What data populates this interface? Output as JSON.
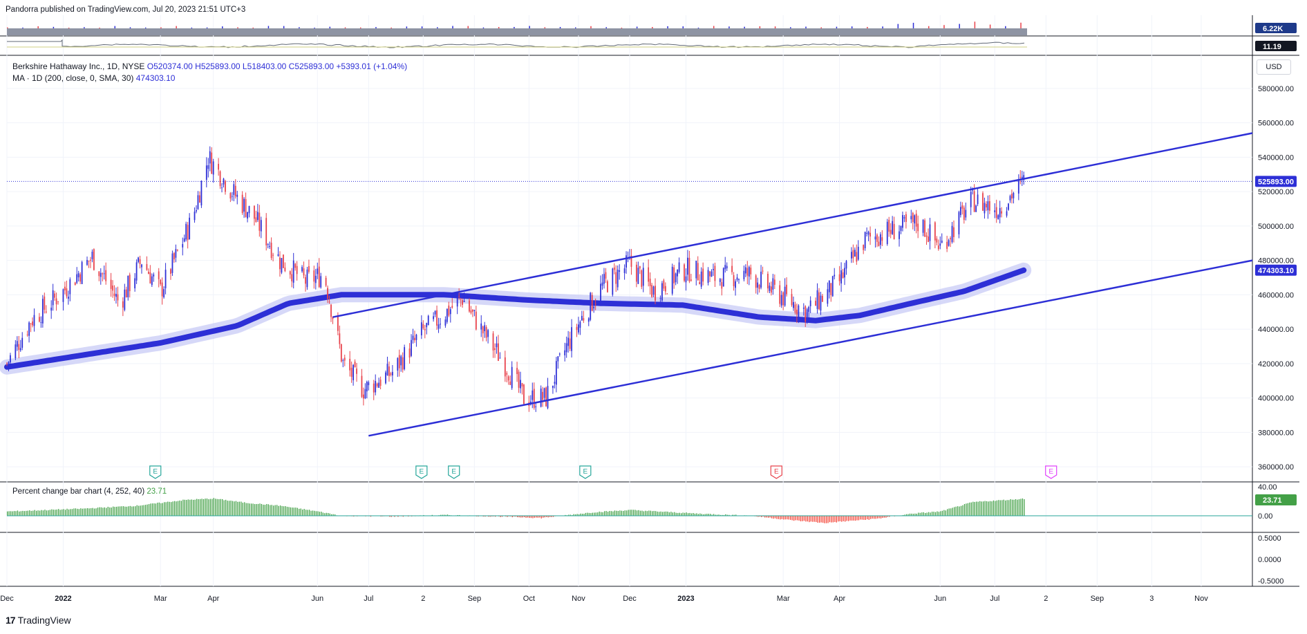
{
  "attribution": "Pandorra published on TradingView.com, Jul 20, 2023 21:51 UTC+3",
  "brand": "TradingView",
  "currency_button": "USD",
  "header": {
    "symbol": "Berkshire Hathaway Inc., 1D, NYSE",
    "open": "O520374.00",
    "high": "H525893.00",
    "low": "L518403.00",
    "close": "C525893.00",
    "change": "+5393.01 (+1.04%)",
    "ma_label": "MA · 1D (200, close, 0, SMA, 30)",
    "ma_value": "474303.10"
  },
  "colors": {
    "up": "#2d2fd6",
    "down": "#e8424b",
    "ma": "#2d2fd6",
    "channel": "#2d2fd6",
    "pct_pos": "#43a047",
    "pct_neg": "#f44336",
    "price_tag": "#2d2fd6",
    "pct_tag": "#43a047"
  },
  "top_panel": {
    "volume_tag": "6.22K",
    "rsi_tag": "11.19"
  },
  "pct_panel": {
    "label": "Percent change bar chart (4, 252, 40)",
    "value": "23.71",
    "tag": "23.71",
    "axis": [
      "40.00",
      "0.00"
    ]
  },
  "bottom_panel": {
    "axis": [
      "0.5000",
      "0.0000",
      "-0.5000"
    ]
  },
  "x_ticks": [
    {
      "label": "Dec",
      "date": "2021-12-01"
    },
    {
      "label": "2022",
      "date": "2022-01-03"
    },
    {
      "label": "Mar",
      "date": "2022-03-01"
    },
    {
      "label": "Apr",
      "date": "2022-04-01"
    },
    {
      "label": "Jun",
      "date": "2022-06-01"
    },
    {
      "label": "Jul",
      "date": "2022-07-01"
    },
    {
      "label": "2",
      "date": "2022-08-02"
    },
    {
      "label": "Sep",
      "date": "2022-09-01"
    },
    {
      "label": "Oct",
      "date": "2022-10-03"
    },
    {
      "label": "Nov",
      "date": "2022-11-01"
    },
    {
      "label": "Dec",
      "date": "2022-12-01"
    },
    {
      "label": "2023",
      "date": "2023-01-03"
    },
    {
      "label": "Mar",
      "date": "2023-03-01"
    },
    {
      "label": "Apr",
      "date": "2023-04-03"
    },
    {
      "label": "Jun",
      "date": "2023-06-01"
    },
    {
      "label": "Jul",
      "date": "2023-07-03"
    },
    {
      "label": "2",
      "date": "2023-08-02"
    },
    {
      "label": "Sep",
      "date": "2023-09-01"
    },
    {
      "label": "3",
      "date": "2023-10-03"
    },
    {
      "label": "Nov",
      "date": "2023-11-01"
    }
  ],
  "y_ticks": [
    "580000.00",
    "560000.00",
    "540000.00",
    "520000.00",
    "500000.00",
    "480000.00",
    "460000.00",
    "440000.00",
    "420000.00",
    "400000.00",
    "380000.00",
    "360000.00"
  ],
  "earnings_markers": [
    {
      "date": "2022-02-26",
      "label": "E",
      "color": "#26a69a"
    },
    {
      "date": "2022-08-01",
      "label": "E",
      "color": "#26a69a"
    },
    {
      "date": "2022-08-20",
      "label": "E",
      "color": "#26a69a"
    },
    {
      "date": "2022-11-05",
      "label": "E",
      "color": "#26a69a"
    },
    {
      "date": "2023-02-25",
      "label": "E",
      "color": "#e8424b"
    },
    {
      "date": "2023-08-05",
      "label": "E",
      "color": "#e040fb"
    }
  ],
  "chart_data": {
    "type": "candlestick",
    "title": "Berkshire Hathaway Inc., 1D, NYSE",
    "ylim": [
      352000,
      594000
    ],
    "xlim": [
      "2021-12-01",
      "2023-12-01"
    ],
    "last_price": 525893.0,
    "grid": true,
    "price_path": [
      [
        "2021-12-01",
        420000
      ],
      [
        "2021-12-15",
        445000
      ],
      [
        "2022-01-03",
        462000
      ],
      [
        "2022-01-20",
        482000
      ],
      [
        "2022-02-05",
        455000
      ],
      [
        "2022-02-18",
        480000
      ],
      [
        "2022-03-01",
        462000
      ],
      [
        "2022-03-10",
        482000
      ],
      [
        "2022-03-20",
        505000
      ],
      [
        "2022-03-29",
        540000
      ],
      [
        "2022-04-12",
        520000
      ],
      [
        "2022-04-25",
        505000
      ],
      [
        "2022-05-10",
        480000
      ],
      [
        "2022-05-25",
        468000
      ],
      [
        "2022-06-05",
        472000
      ],
      [
        "2022-06-16",
        420000
      ],
      [
        "2022-06-28",
        405000
      ],
      [
        "2022-07-15",
        415000
      ],
      [
        "2022-08-01",
        438000
      ],
      [
        "2022-08-10",
        445000
      ],
      [
        "2022-08-25",
        458000
      ],
      [
        "2022-09-05",
        440000
      ],
      [
        "2022-09-20",
        418000
      ],
      [
        "2022-09-30",
        400000
      ],
      [
        "2022-10-13",
        400000
      ],
      [
        "2022-10-25",
        430000
      ],
      [
        "2022-11-05",
        450000
      ],
      [
        "2022-11-15",
        465000
      ],
      [
        "2022-12-01",
        478000
      ],
      [
        "2022-12-15",
        462000
      ],
      [
        "2023-01-03",
        475000
      ],
      [
        "2023-01-20",
        470000
      ],
      [
        "2023-02-10",
        472000
      ],
      [
        "2023-02-24",
        462000
      ],
      [
        "2023-03-15",
        450000
      ],
      [
        "2023-04-03",
        468000
      ],
      [
        "2023-04-18",
        492000
      ],
      [
        "2023-05-05",
        498000
      ],
      [
        "2023-05-20",
        502000
      ],
      [
        "2023-06-01",
        488000
      ],
      [
        "2023-06-20",
        515000
      ],
      [
        "2023-07-05",
        510000
      ],
      [
        "2023-07-20",
        525893
      ]
    ],
    "ma_200": [
      [
        "2021-12-01",
        418000
      ],
      [
        "2022-01-15",
        425000
      ],
      [
        "2022-03-01",
        432000
      ],
      [
        "2022-04-15",
        442000
      ],
      [
        "2022-05-15",
        455000
      ],
      [
        "2022-06-15",
        460000
      ],
      [
        "2022-08-15",
        460000
      ],
      [
        "2022-10-01",
        457000
      ],
      [
        "2022-11-15",
        455000
      ],
      [
        "2023-01-01",
        454000
      ],
      [
        "2023-02-15",
        447000
      ],
      [
        "2023-03-20",
        445000
      ],
      [
        "2023-04-15",
        448000
      ],
      [
        "2023-05-15",
        455000
      ],
      [
        "2023-06-15",
        462000
      ],
      [
        "2023-07-20",
        474303.1
      ]
    ],
    "channel_upper": [
      [
        "2022-06-10",
        447000
      ],
      [
        "2023-12-01",
        554000
      ]
    ],
    "channel_lower": [
      [
        "2022-07-01",
        378000
      ],
      [
        "2023-12-01",
        480000
      ]
    ],
    "pct_change_path": [
      [
        "2021-12-01",
        6
      ],
      [
        "2022-01-15",
        10
      ],
      [
        "2022-02-15",
        14
      ],
      [
        "2022-03-15",
        22
      ],
      [
        "2022-04-01",
        24
      ],
      [
        "2022-04-20",
        18
      ],
      [
        "2022-05-10",
        14
      ],
      [
        "2022-06-01",
        6
      ],
      [
        "2022-06-15",
        0
      ],
      [
        "2022-07-15",
        -1
      ],
      [
        "2022-08-15",
        1
      ],
      [
        "2022-09-15",
        -1
      ],
      [
        "2022-10-10",
        -3
      ],
      [
        "2022-11-10",
        5
      ],
      [
        "2022-12-01",
        8
      ],
      [
        "2023-01-10",
        3
      ],
      [
        "2023-02-10",
        0
      ],
      [
        "2023-03-05",
        -6
      ],
      [
        "2023-03-25",
        -10
      ],
      [
        "2023-04-25",
        -4
      ],
      [
        "2023-05-15",
        3
      ],
      [
        "2023-06-01",
        6
      ],
      [
        "2023-06-20",
        19
      ],
      [
        "2023-07-20",
        23.71
      ]
    ]
  }
}
